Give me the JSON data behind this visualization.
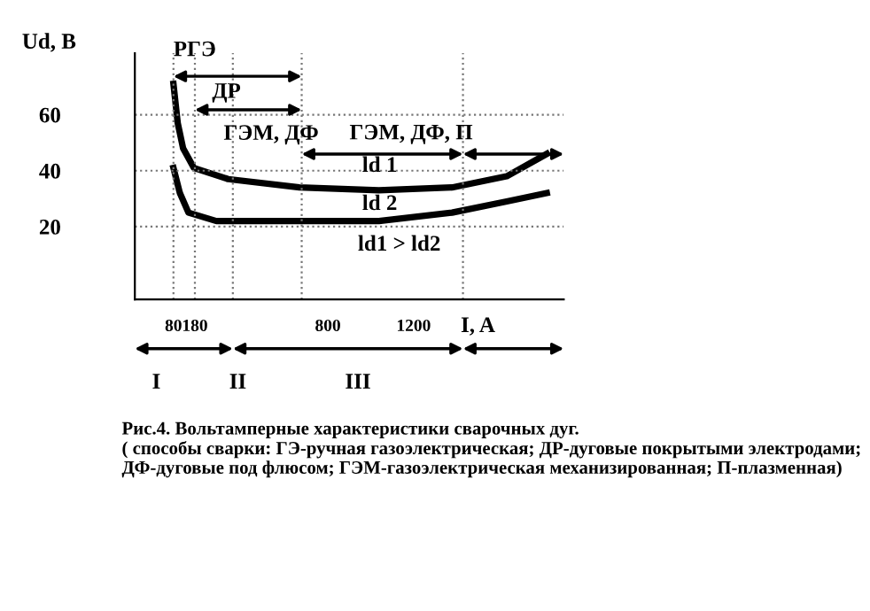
{
  "chart_data": {
    "type": "line",
    "xlabel": "I, A",
    "ylabel": "Ud, B",
    "xlim": [
      -100,
      1900
    ],
    "ylim": [
      -6,
      82
    ],
    "xticks": [
      80,
      180,
      800,
      1200
    ],
    "yticks": [
      20,
      40,
      60
    ],
    "grid": false,
    "legend": false,
    "marker": "none",
    "line_style": "solid",
    "series": [
      {
        "color": "#000000",
        "x": [
          80,
          100,
          125,
          175,
          335,
          667,
          1038,
          1379,
          1634,
          1821
        ],
        "values": [
          71,
          57,
          48,
          41,
          37,
          34,
          33,
          34,
          38,
          46
        ]
      },
      {
        "color": "#000000",
        "x": [
          80,
          110,
          150,
          280,
          667,
          1038,
          1379,
          1634,
          1821
        ],
        "values": [
          41,
          32,
          25,
          22,
          22,
          22,
          25,
          29,
          32
        ]
      }
    ],
    "ref_lines": [
      {
        "axis": "x",
        "value": 80,
        "line_style": "dotted"
      },
      {
        "axis": "x",
        "value": 180,
        "line_style": "dotted"
      },
      {
        "axis": "x",
        "value": 357,
        "line_style": "dotted"
      },
      {
        "axis": "x",
        "value": 678,
        "line_style": "dotted"
      },
      {
        "axis": "x",
        "value": 1430,
        "line_style": "dotted"
      },
      {
        "axis": "y",
        "value": 60,
        "line_style": "dotted"
      },
      {
        "axis": "y",
        "value": 40,
        "line_style": "dotted"
      },
      {
        "axis": "y",
        "value": 20,
        "line_style": "dotted"
      }
    ],
    "annotations": [
      "РГЭ",
      "ДР",
      "ГЭМ, ДФ",
      {
        "text": "ГЭМ, ДФ, П",
        "x": 1430,
        "y": 46
      },
      "ld 1",
      "ld 2",
      "ld1 > ld2",
      "I",
      "II",
      "III",
      "Рис.4. Вольтамперные характеристики сварочных дуг.\n( способы сварки: ГЭ-ручная газоэлектрическая; ДР-дуговые покрытыми электродами; ДФ-дуговые под флюсом; ГЭМ-газоэлектрическая механизированная; П-плазменная)"
    ]
  }
}
